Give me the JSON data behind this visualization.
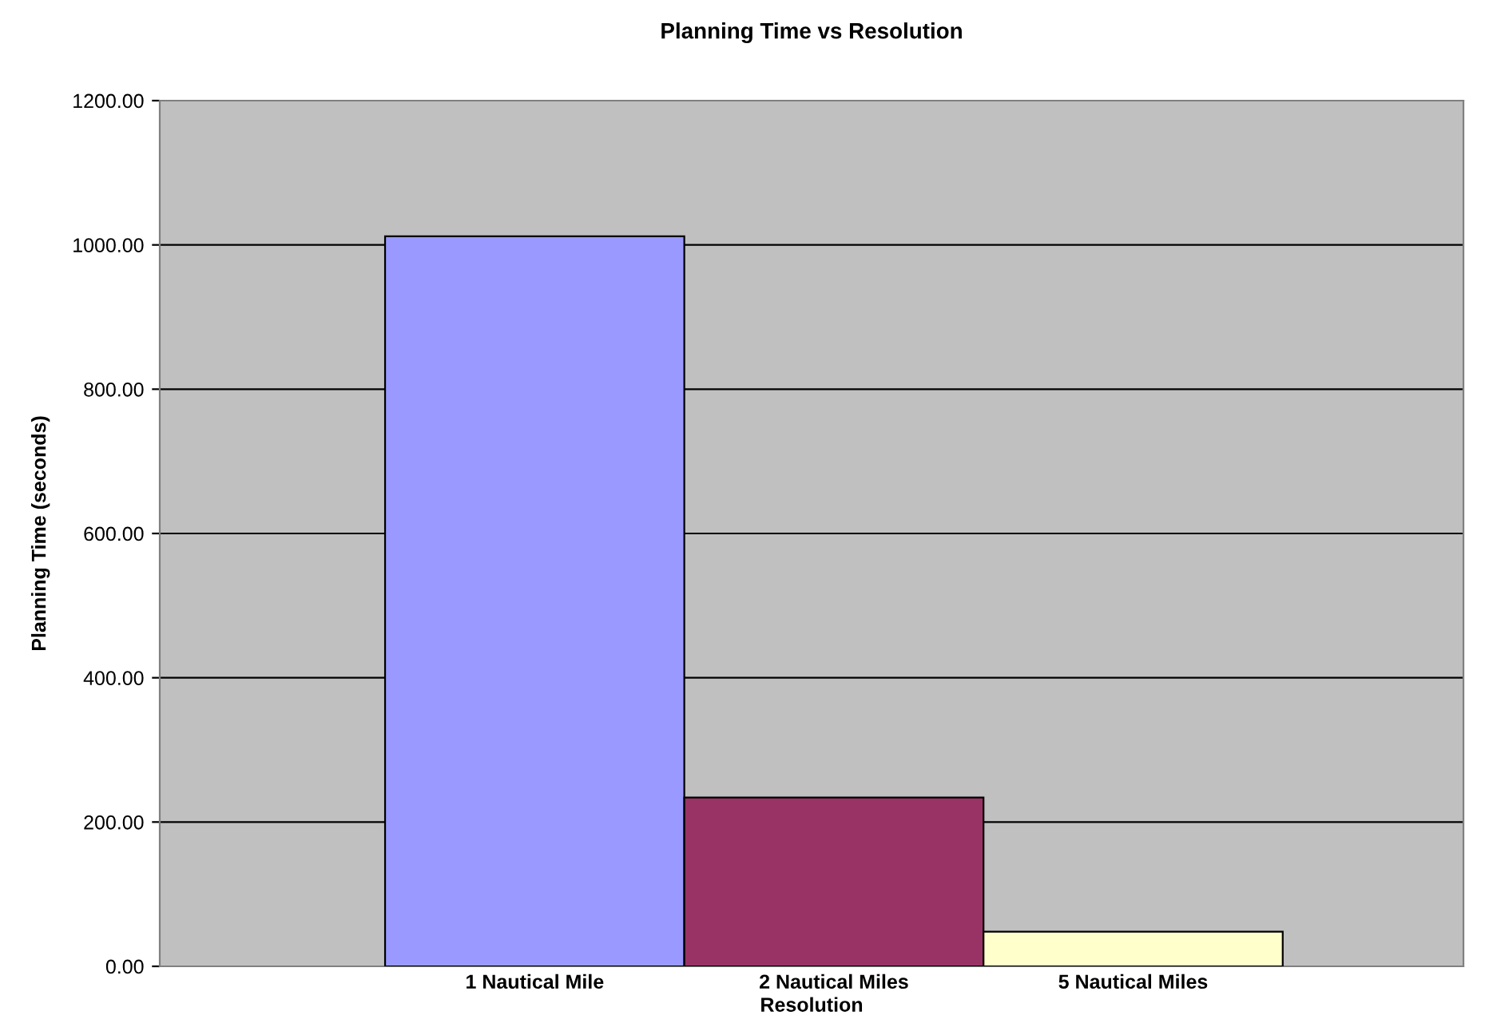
{
  "chart_data": {
    "type": "bar",
    "title": "Planning Time vs Resolution",
    "xlabel": "Resolution",
    "ylabel": "Planning Time (seconds)",
    "categories": [
      "1 Nautical Mile",
      "2 Nautical Miles",
      "5 Nautical Miles"
    ],
    "values": [
      1012,
      234,
      48
    ],
    "colors": [
      "#9999ff",
      "#993366",
      "#ffffcc"
    ],
    "ylim": [
      0,
      1200
    ],
    "yticks": [
      {
        "value": 0,
        "label": "0.00"
      },
      {
        "value": 200,
        "label": "200.00"
      },
      {
        "value": 400,
        "label": "400.00"
      },
      {
        "value": 600,
        "label": "600.00"
      },
      {
        "value": 800,
        "label": "800.00"
      },
      {
        "value": 1000,
        "label": "1000.00"
      },
      {
        "value": 1200,
        "label": "1200.00"
      }
    ],
    "grid": "y",
    "legend": false
  }
}
